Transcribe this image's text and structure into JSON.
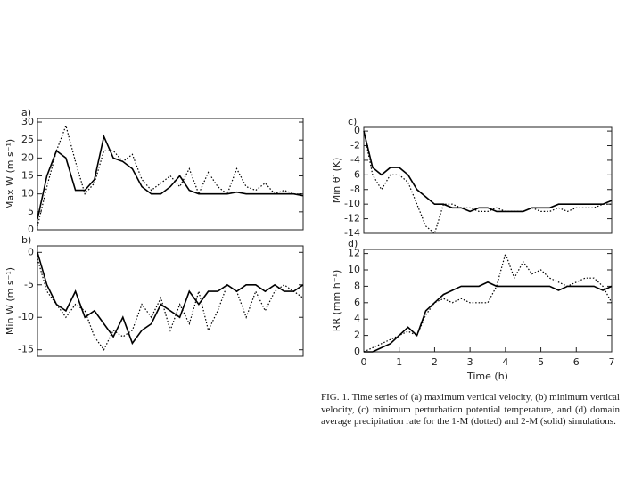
{
  "chart_data": [
    {
      "type": "line",
      "title": "a)",
      "ylabel": "Max W (m s⁻¹)",
      "xlim": [
        0,
        7
      ],
      "ylim": [
        0,
        31
      ],
      "yticks": [
        0,
        5,
        10,
        15,
        20,
        25,
        30
      ],
      "x": [
        0,
        0.25,
        0.5,
        0.75,
        1,
        1.25,
        1.5,
        1.75,
        2,
        2.25,
        2.5,
        2.75,
        3,
        3.25,
        3.5,
        3.75,
        4,
        4.25,
        4.5,
        4.75,
        5,
        5.25,
        5.5,
        5.75,
        6,
        6.25,
        6.5,
        6.75,
        7
      ],
      "series": [
        {
          "style": "dotted",
          "color": "#000000",
          "values": [
            1,
            12,
            22,
            29,
            19,
            10,
            13,
            22,
            22,
            19,
            21,
            14,
            11,
            13,
            15,
            12,
            17,
            10,
            16,
            12,
            10,
            17,
            12,
            11,
            13,
            10,
            11,
            10,
            10
          ]
        },
        {
          "style": "solid",
          "color": "#000000",
          "values": [
            3,
            15,
            22,
            20,
            11,
            11,
            14,
            26,
            20,
            19,
            17,
            12,
            10,
            10,
            12,
            15,
            11,
            10,
            10,
            10,
            10,
            10.5,
            10,
            10,
            10,
            10,
            10,
            10,
            9.5
          ]
        }
      ]
    },
    {
      "type": "line",
      "title": "b)",
      "ylabel": "Min W (m s⁻¹)",
      "xlim": [
        0,
        7
      ],
      "ylim": [
        -16,
        1
      ],
      "yticks": [
        -15,
        -10,
        -5,
        0
      ],
      "x": [
        0,
        0.25,
        0.5,
        0.75,
        1,
        1.25,
        1.5,
        1.75,
        2,
        2.25,
        2.5,
        2.75,
        3,
        3.25,
        3.5,
        3.75,
        4,
        4.25,
        4.5,
        4.75,
        5,
        5.25,
        5.5,
        5.75,
        6,
        6.25,
        6.5,
        6.75,
        7
      ],
      "series": [
        {
          "style": "dotted",
          "color": "#000000",
          "values": [
            -1,
            -6,
            -8,
            -10,
            -8,
            -9,
            -13,
            -15,
            -12,
            -13,
            -12,
            -8,
            -10,
            -7,
            -12,
            -8,
            -11,
            -6,
            -12,
            -9,
            -5,
            -6,
            -10,
            -6,
            -9,
            -6,
            -5,
            -6,
            -7
          ]
        },
        {
          "style": "solid",
          "color": "#000000",
          "values": [
            0,
            -5,
            -8,
            -9,
            -6,
            -10,
            -9,
            -11,
            -13,
            -10,
            -14,
            -12,
            -11,
            -8,
            -9,
            -10,
            -6,
            -8,
            -6,
            -6,
            -5,
            -6,
            -5,
            -5,
            -6,
            -5,
            -6,
            -6,
            -5
          ]
        }
      ]
    },
    {
      "type": "line",
      "title": "c)",
      "ylabel": "Min θ′ (K)",
      "xlim": [
        0,
        7
      ],
      "ylim": [
        -14,
        0.5
      ],
      "yticks": [
        -14,
        -12,
        -10,
        -8,
        -6,
        -4,
        -2,
        0
      ],
      "x": [
        0,
        0.25,
        0.5,
        0.75,
        1,
        1.25,
        1.5,
        1.75,
        2,
        2.25,
        2.5,
        2.75,
        3,
        3.25,
        3.5,
        3.75,
        4,
        4.25,
        4.5,
        4.75,
        5,
        5.25,
        5.5,
        5.75,
        6,
        6.25,
        6.5,
        6.75,
        7
      ],
      "series": [
        {
          "style": "dotted",
          "color": "#000000",
          "values": [
            0,
            -6,
            -8,
            -6,
            -6,
            -7,
            -10,
            -13,
            -14,
            -10,
            -10,
            -10.5,
            -10.5,
            -11,
            -11,
            -10.5,
            -11,
            -11,
            -11,
            -10.5,
            -11,
            -11,
            -10.5,
            -11,
            -10.5,
            -10.5,
            -10.5,
            -10,
            -10
          ]
        },
        {
          "style": "solid",
          "color": "#000000",
          "values": [
            0,
            -5,
            -6,
            -5,
            -5,
            -6,
            -8,
            -9,
            -10,
            -10,
            -10.5,
            -10.5,
            -11,
            -10.5,
            -10.5,
            -11,
            -11,
            -11,
            -11,
            -10.5,
            -10.5,
            -10.5,
            -10,
            -10,
            -10,
            -10,
            -10,
            -10,
            -9.5
          ]
        }
      ]
    },
    {
      "type": "line",
      "title": "d)",
      "ylabel": "RR (mm h⁻¹)",
      "xlabel": "Time (h)",
      "xlim": [
        0,
        7
      ],
      "xticks": [
        0,
        1,
        2,
        3,
        4,
        5,
        6,
        7
      ],
      "ylim": [
        0,
        12.5
      ],
      "yticks": [
        0,
        2,
        4,
        6,
        8,
        10,
        12
      ],
      "x": [
        0,
        0.25,
        0.5,
        0.75,
        1,
        1.25,
        1.5,
        1.75,
        2,
        2.25,
        2.5,
        2.75,
        3,
        3.25,
        3.5,
        3.75,
        4,
        4.25,
        4.5,
        4.75,
        5,
        5.25,
        5.5,
        5.75,
        6,
        6.25,
        6.5,
        6.75,
        7
      ],
      "series": [
        {
          "style": "dotted",
          "color": "#000000",
          "values": [
            0,
            0.5,
            1,
            1.5,
            2,
            2.5,
            2,
            4.5,
            6,
            6.5,
            6,
            6.5,
            6,
            6,
            6,
            8,
            12,
            9,
            11,
            9.5,
            10,
            9,
            8.5,
            8,
            8.5,
            9,
            9,
            8,
            6
          ]
        },
        {
          "style": "solid",
          "color": "#000000",
          "values": [
            0,
            0,
            0.5,
            1,
            2,
            3,
            2,
            5,
            6,
            7,
            7.5,
            8,
            8,
            8,
            8.5,
            8,
            8,
            8,
            8,
            8,
            8,
            8,
            7.5,
            8,
            8,
            8,
            8,
            7.5,
            8
          ]
        }
      ]
    }
  ],
  "caption": "FIG. 1. Time series of (a) maximum vertical velocity, (b) minimum vertical velocity, (c) minimum perturbation potential temperature, and (d) domain average precipitation rate for the 1-M (dotted) and 2-M (solid) simulations."
}
